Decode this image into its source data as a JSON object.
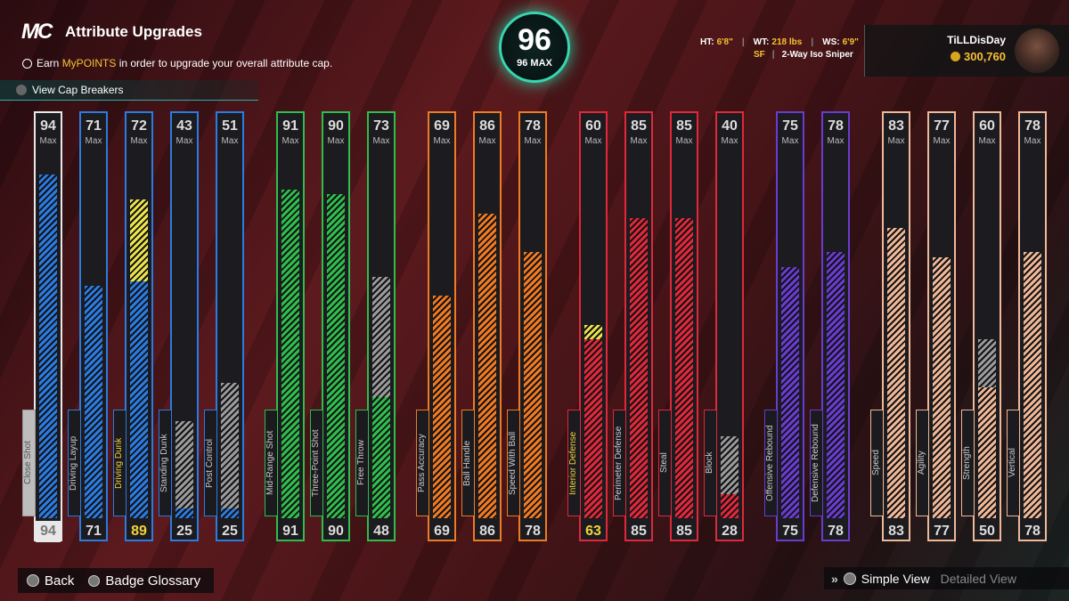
{
  "header": {
    "logo": "MC",
    "title": "Attribute Upgrades",
    "info": [
      "Earn ",
      "MyPOINTS",
      " in order to upgrade your overall attribute cap."
    ],
    "cap_breakers": "View Cap Breakers"
  },
  "overall": {
    "value": 96,
    "max_label": "96 MAX"
  },
  "player": {
    "measurements": [
      {
        "label": "HT:",
        "value": "6'8\""
      },
      {
        "label": "WT:",
        "value": "218 lbs"
      },
      {
        "label": "WS:",
        "value": "6'9\""
      }
    ],
    "position": "SF",
    "archetype": "2-Way Iso Sniper",
    "gamertag": "TiLLDisDay",
    "vc": "300,760"
  },
  "max_label": "Max",
  "groups": [
    {
      "color": "#2b7be0",
      "attributes": [
        {
          "name": "Close Shot",
          "max": 94,
          "value": 94,
          "selected": true
        },
        {
          "name": "Driving Layup",
          "max": 71,
          "value": 71
        },
        {
          "name": "Driving Dunk",
          "max": 72,
          "value": 89
        },
        {
          "name": "Standing Dunk",
          "max": 43,
          "value": 25
        },
        {
          "name": "Post Control",
          "max": 51,
          "value": 25
        }
      ]
    },
    {
      "color": "#2fbd4c",
      "attributes": [
        {
          "name": "Mid-Range Shot",
          "max": 91,
          "value": 91
        },
        {
          "name": "Three-Point Shot",
          "max": 90,
          "value": 90
        },
        {
          "name": "Free Throw",
          "max": 73,
          "value": 48
        }
      ]
    },
    {
      "color": "#f07a22",
      "attributes": [
        {
          "name": "Pass Accuracy",
          "max": 69,
          "value": 69
        },
        {
          "name": "Ball Handle",
          "max": 86,
          "value": 86
        },
        {
          "name": "Speed With Ball",
          "max": 78,
          "value": 78
        }
      ]
    },
    {
      "color": "#e0283a",
      "attributes": [
        {
          "name": "Interior Defense",
          "max": 60,
          "value": 63
        },
        {
          "name": "Perimeter Defense",
          "max": 85,
          "value": 85
        },
        {
          "name": "Steal",
          "max": 85,
          "value": 85
        },
        {
          "name": "Block",
          "max": 40,
          "value": 28
        }
      ]
    },
    {
      "color": "#6a3bd0",
      "attributes": [
        {
          "name": "Offensive Rebound",
          "max": 75,
          "value": 75
        },
        {
          "name": "Defensive Rebound",
          "max": 78,
          "value": 78
        }
      ]
    },
    {
      "color": "#f0b896",
      "attributes": [
        {
          "name": "Speed",
          "max": 83,
          "value": 83
        },
        {
          "name": "Agility",
          "max": 77,
          "value": 77
        },
        {
          "name": "Strength",
          "max": 60,
          "value": 50
        },
        {
          "name": "Vertical",
          "max": 78,
          "value": 78
        }
      ]
    }
  ],
  "footer": {
    "back": "Back",
    "badge_glossary": "Badge Glossary",
    "simple_view": "Simple View",
    "detailed_view": "Detailed View"
  }
}
